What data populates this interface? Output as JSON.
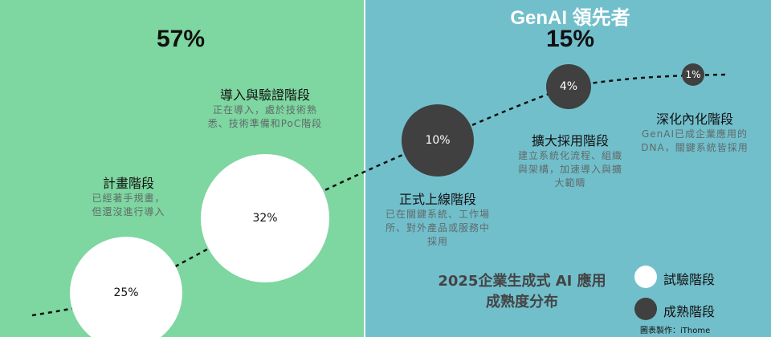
{
  "colors": {
    "pilot_bg": "#7ed6a0",
    "mature_bg": "#72bfcc",
    "pilot_circle": "#ffffff",
    "mature_circle": "#404040"
  },
  "pilot": {
    "total": "57%"
  },
  "mature": {
    "heading": "GenAI 領先者",
    "total": "15%"
  },
  "stages": [
    {
      "name": "計畫階段",
      "desc": "已經著手規畫，\n但還沒進行導入",
      "value": "25%",
      "group": "pilot"
    },
    {
      "name": "導入與驗證階段",
      "desc": "正在導入，處於技術熟\n悉、技術準備和PoC階段",
      "value": "32%",
      "group": "pilot"
    },
    {
      "name": "正式上線階段",
      "desc": "已在關鍵系統、工作場\n所、對外產品或服務中\n採用",
      "value": "10%",
      "group": "mature"
    },
    {
      "name": "擴大採用階段",
      "desc": "建立系統化流程、組織\n與架構，加速導入與擴\n大範疇",
      "value": "4%",
      "group": "mature"
    },
    {
      "name": "深化內化階段",
      "desc": "GenAI已成企業應用的\nDNA，關鍵系統皆採用",
      "value": "1%",
      "group": "mature"
    }
  ],
  "title": "2025企業生成式 AI 應用\n成熟度分布",
  "legend": [
    {
      "label": "試驗階段",
      "color": "#ffffff"
    },
    {
      "label": "成熟階段",
      "color": "#404040"
    }
  ],
  "credit": "圖表製作：iThome"
}
